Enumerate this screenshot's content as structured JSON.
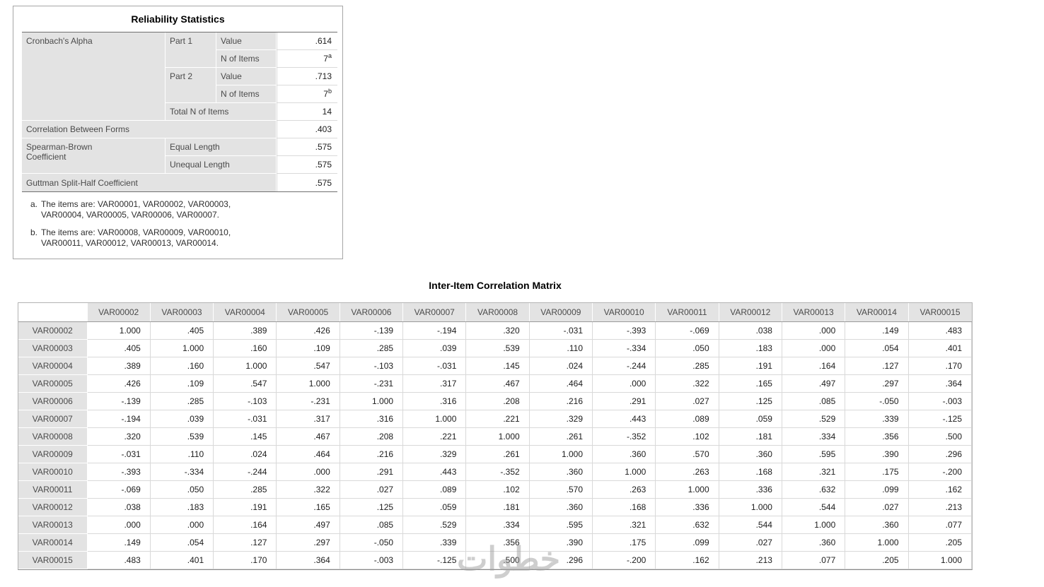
{
  "reliability": {
    "title": "Reliability Statistics",
    "labels": {
      "cronbach": "Cronbach's Alpha",
      "part1": "Part 1",
      "part2": "Part 2",
      "value1": "Value",
      "n_of_items1": "N of Items",
      "value2": "Value",
      "n_of_items2": "N of Items",
      "total_n": "Total N of Items",
      "corr_between_forms": "Correlation Between Forms",
      "spearman": "Spearman-Brown\nCoefficient",
      "equal_length": "Equal Length",
      "unequal_length": "Unequal Length",
      "guttman": "Guttman Split-Half Coefficient"
    },
    "values": {
      "part1_value": ".614",
      "part1_n": "7",
      "part1_n_sup": "a",
      "part2_value": ".713",
      "part2_n": "7",
      "part2_n_sup": "b",
      "total_n": "14",
      "corr_between_forms": ".403",
      "equal_length": ".575",
      "unequal_length": ".575",
      "guttman": ".575"
    },
    "footnotes": [
      {
        "marker": "a.",
        "text": "The items are: VAR00001, VAR00002, VAR00003, VAR00004, VAR00005, VAR00006, VAR00007."
      },
      {
        "marker": "b.",
        "text": "The items are: VAR00008, VAR00009, VAR00010, VAR00011, VAR00012, VAR00013, VAR00014."
      }
    ]
  },
  "matrix": {
    "title": "Inter-Item Correlation Matrix",
    "variables": [
      "VAR00002",
      "VAR00003",
      "VAR00004",
      "VAR00005",
      "VAR00006",
      "VAR00007",
      "VAR00008",
      "VAR00009",
      "VAR00010",
      "VAR00011",
      "VAR00012",
      "VAR00013",
      "VAR00014",
      "VAR00015"
    ],
    "rows": [
      [
        "1.000",
        ".405",
        ".389",
        ".426",
        "-.139",
        "-.194",
        ".320",
        "-.031",
        "-.393",
        "-.069",
        ".038",
        ".000",
        ".149",
        ".483"
      ],
      [
        ".405",
        "1.000",
        ".160",
        ".109",
        ".285",
        ".039",
        ".539",
        ".110",
        "-.334",
        ".050",
        ".183",
        ".000",
        ".054",
        ".401"
      ],
      [
        ".389",
        ".160",
        "1.000",
        ".547",
        "-.103",
        "-.031",
        ".145",
        ".024",
        "-.244",
        ".285",
        ".191",
        ".164",
        ".127",
        ".170"
      ],
      [
        ".426",
        ".109",
        ".547",
        "1.000",
        "-.231",
        ".317",
        ".467",
        ".464",
        ".000",
        ".322",
        ".165",
        ".497",
        ".297",
        ".364"
      ],
      [
        "-.139",
        ".285",
        "-.103",
        "-.231",
        "1.000",
        ".316",
        ".208",
        ".216",
        ".291",
        ".027",
        ".125",
        ".085",
        "-.050",
        "-.003"
      ],
      [
        "-.194",
        ".039",
        "-.031",
        ".317",
        ".316",
        "1.000",
        ".221",
        ".329",
        ".443",
        ".089",
        ".059",
        ".529",
        ".339",
        "-.125"
      ],
      [
        ".320",
        ".539",
        ".145",
        ".467",
        ".208",
        ".221",
        "1.000",
        ".261",
        "-.352",
        ".102",
        ".181",
        ".334",
        ".356",
        ".500"
      ],
      [
        "-.031",
        ".110",
        ".024",
        ".464",
        ".216",
        ".329",
        ".261",
        "1.000",
        ".360",
        ".570",
        ".360",
        ".595",
        ".390",
        ".296"
      ],
      [
        "-.393",
        "-.334",
        "-.244",
        ".000",
        ".291",
        ".443",
        "-.352",
        ".360",
        "1.000",
        ".263",
        ".168",
        ".321",
        ".175",
        "-.200"
      ],
      [
        "-.069",
        ".050",
        ".285",
        ".322",
        ".027",
        ".089",
        ".102",
        ".570",
        ".263",
        "1.000",
        ".336",
        ".632",
        ".099",
        ".162"
      ],
      [
        ".038",
        ".183",
        ".191",
        ".165",
        ".125",
        ".059",
        ".181",
        ".360",
        ".168",
        ".336",
        "1.000",
        ".544",
        ".027",
        ".213"
      ],
      [
        ".000",
        ".000",
        ".164",
        ".497",
        ".085",
        ".529",
        ".334",
        ".595",
        ".321",
        ".632",
        ".544",
        "1.000",
        ".360",
        ".077"
      ],
      [
        ".149",
        ".054",
        ".127",
        ".297",
        "-.050",
        ".339",
        ".356",
        ".390",
        ".175",
        ".099",
        ".027",
        ".360",
        "1.000",
        ".205"
      ],
      [
        ".483",
        ".401",
        ".170",
        ".364",
        "-.003",
        "-.125",
        ".500",
        ".296",
        "-.200",
        ".162",
        ".213",
        ".077",
        ".205",
        "1.000"
      ]
    ]
  },
  "watermark": {
    "text": "خطوات"
  }
}
